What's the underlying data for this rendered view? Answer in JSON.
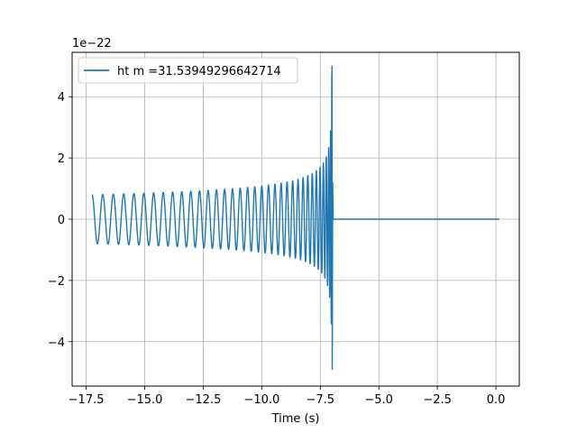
{
  "chart_data": {
    "type": "line",
    "title": "",
    "xlabel": "Time (s)",
    "ylabel": "",
    "y_offset_label": "1e−22",
    "xlim": [
      -18.1,
      1.0
    ],
    "ylim": [
      -5.45,
      5.45
    ],
    "x_ticks": [
      -17.5,
      -15.0,
      -12.5,
      -10.0,
      -7.5,
      -5.0,
      -2.5,
      0.0
    ],
    "x_tick_labels": [
      "−17.5",
      "−15.0",
      "−12.5",
      "−10.0",
      "−7.5",
      "−5.0",
      "−2.5",
      "0.0"
    ],
    "y_ticks": [
      -4,
      -2,
      0,
      2,
      4
    ],
    "y_tick_labels": [
      "−4",
      "−2",
      "0",
      "2",
      "4"
    ],
    "grid": true,
    "legend_position": "top-left",
    "series": [
      {
        "name": "ht m =31.53949296642714",
        "color": "#1f77b4",
        "waveform": {
          "start_time": -17.25,
          "merger_time": -7.0,
          "end_time": 0.15,
          "initial_amplitude": 0.8,
          "peak_amplitude": 5.0,
          "min_amplitude": -4.9
        }
      }
    ]
  }
}
